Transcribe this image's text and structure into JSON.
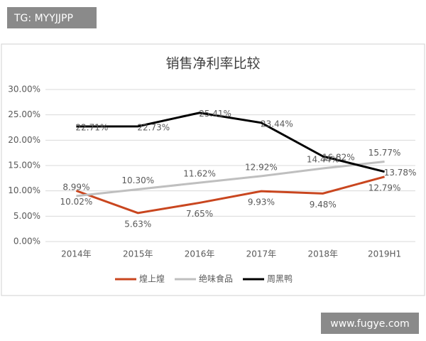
{
  "watermarks": {
    "top_left": "TG: MYYJJPP",
    "bottom_right": "www.fugye.com"
  },
  "chart_data": {
    "type": "line",
    "title": "销售净利率比较",
    "categories": [
      "2014年",
      "2015年",
      "2016年",
      "2017年",
      "2018年",
      "2019H1"
    ],
    "series": [
      {
        "name": "煌上煌",
        "color": "#c9461f",
        "values": [
          10.02,
          5.63,
          7.65,
          9.93,
          9.48,
          12.79
        ],
        "value_labels": [
          "10.02%",
          "5.63%",
          "7.65%",
          "9.93%",
          "9.48%",
          "12.79%"
        ]
      },
      {
        "name": "绝味食品",
        "color": "#bfbfbf",
        "values": [
          8.99,
          10.3,
          11.62,
          12.92,
          14.44,
          15.77
        ],
        "value_labels": [
          "8.99%",
          "10.30%",
          "11.62%",
          "12.92%",
          "14.44%",
          "15.77%"
        ]
      },
      {
        "name": "周黑鸭",
        "color": "#000000",
        "values": [
          22.71,
          22.73,
          25.41,
          23.44,
          16.82,
          13.78
        ],
        "value_labels": [
          "22.71%",
          "22.73%",
          "25.41%",
          "23.44%",
          "16.82%",
          "13.78%"
        ]
      }
    ],
    "ylim": [
      0,
      30
    ],
    "yticks": [
      {
        "value": 0,
        "label": "0.00%"
      },
      {
        "value": 5,
        "label": "5.00%"
      },
      {
        "value": 10,
        "label": "10.00%"
      },
      {
        "value": 15,
        "label": "15.00%"
      },
      {
        "value": 20,
        "label": "20.00%"
      },
      {
        "value": 25,
        "label": "25.00%"
      },
      {
        "value": 30,
        "label": "30.00%"
      }
    ],
    "grid": true,
    "legend": "bottom"
  }
}
